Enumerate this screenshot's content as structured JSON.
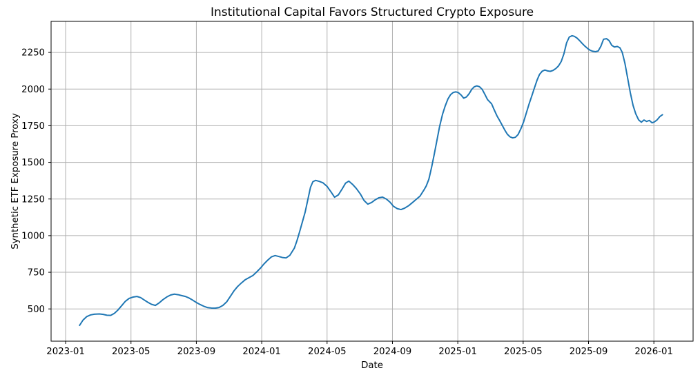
{
  "chart_data": {
    "type": "line",
    "title": "Institutional Capital Favors Structured Crypto Exposure",
    "xlabel": "Date",
    "ylabel": "Synthetic ETF Exposure Proxy",
    "grid": true,
    "grid_color": "#b0b0b0",
    "line_color": "#1f77b4",
    "background_color": "#ffffff",
    "legend": "none",
    "x_axis_origin": "2023-01",
    "x_tick_labels": [
      "2023-01",
      "2023-05",
      "2023-09",
      "2024-01",
      "2024-05",
      "2024-09",
      "2025-01",
      "2025-05",
      "2025-09",
      "2026-01"
    ],
    "y_tick_labels": [
      500,
      750,
      1000,
      1250,
      1500,
      1750,
      2000,
      2250
    ],
    "xlim_month_index": [
      -0.89,
      38.4
    ],
    "ylim": [
      280,
      2462
    ],
    "series": [
      {
        "name": "Synthetic ETF Exposure Proxy",
        "points": [
          [
            "2023-01-27",
            388
          ],
          [
            "2023-02-03",
            424
          ],
          [
            "2023-02-10",
            448
          ],
          [
            "2023-02-17",
            459
          ],
          [
            "2023-02-24",
            464
          ],
          [
            "2023-03-03",
            466
          ],
          [
            "2023-03-10",
            463
          ],
          [
            "2023-03-17",
            457
          ],
          [
            "2023-03-24",
            456
          ],
          [
            "2023-03-31",
            470
          ],
          [
            "2023-04-07",
            492
          ],
          [
            "2023-04-14",
            522
          ],
          [
            "2023-04-21",
            552
          ],
          [
            "2023-04-28",
            572
          ],
          [
            "2023-05-05",
            581
          ],
          [
            "2023-05-12",
            585
          ],
          [
            "2023-05-19",
            577
          ],
          [
            "2023-05-26",
            560
          ],
          [
            "2023-06-02",
            545
          ],
          [
            "2023-06-09",
            531
          ],
          [
            "2023-06-16",
            524
          ],
          [
            "2023-06-23",
            541
          ],
          [
            "2023-06-30",
            563
          ],
          [
            "2023-07-07",
            582
          ],
          [
            "2023-07-14",
            595
          ],
          [
            "2023-07-21",
            601
          ],
          [
            "2023-07-28",
            597
          ],
          [
            "2023-08-04",
            591
          ],
          [
            "2023-08-11",
            585
          ],
          [
            "2023-08-18",
            574
          ],
          [
            "2023-08-25",
            559
          ],
          [
            "2023-09-01",
            544
          ],
          [
            "2023-09-08",
            530
          ],
          [
            "2023-09-15",
            518
          ],
          [
            "2023-09-22",
            509
          ],
          [
            "2023-09-29",
            506
          ],
          [
            "2023-10-06",
            505
          ],
          [
            "2023-10-13",
            510
          ],
          [
            "2023-10-20",
            524
          ],
          [
            "2023-10-27",
            548
          ],
          [
            "2023-11-03",
            583
          ],
          [
            "2023-11-10",
            622
          ],
          [
            "2023-11-17",
            653
          ],
          [
            "2023-11-24",
            677
          ],
          [
            "2023-12-01",
            700
          ],
          [
            "2023-12-08",
            714
          ],
          [
            "2023-12-15",
            728
          ],
          [
            "2023-12-22",
            752
          ],
          [
            "2023-12-29",
            778
          ],
          [
            "2024-01-05",
            806
          ],
          [
            "2024-01-12",
            832
          ],
          [
            "2024-01-19",
            855
          ],
          [
            "2024-01-26",
            864
          ],
          [
            "2024-02-02",
            858
          ],
          [
            "2024-02-09",
            851
          ],
          [
            "2024-02-16",
            848
          ],
          [
            "2024-02-23",
            866
          ],
          [
            "2024-03-01",
            915
          ],
          [
            "2024-03-06",
            968
          ],
          [
            "2024-03-11",
            1030
          ],
          [
            "2024-03-16",
            1095
          ],
          [
            "2024-03-21",
            1160
          ],
          [
            "2024-03-26",
            1245
          ],
          [
            "2024-03-31",
            1330
          ],
          [
            "2024-04-05",
            1368
          ],
          [
            "2024-04-10",
            1377
          ],
          [
            "2024-04-17",
            1370
          ],
          [
            "2024-04-24",
            1360
          ],
          [
            "2024-05-01",
            1336
          ],
          [
            "2024-05-08",
            1300
          ],
          [
            "2024-05-15",
            1262
          ],
          [
            "2024-05-22",
            1278
          ],
          [
            "2024-05-29",
            1318
          ],
          [
            "2024-06-05",
            1358
          ],
          [
            "2024-06-11",
            1372
          ],
          [
            "2024-06-18",
            1350
          ],
          [
            "2024-06-25",
            1322
          ],
          [
            "2024-07-02",
            1285
          ],
          [
            "2024-07-09",
            1240
          ],
          [
            "2024-07-16",
            1215
          ],
          [
            "2024-07-23",
            1226
          ],
          [
            "2024-07-30",
            1245
          ],
          [
            "2024-08-06",
            1258
          ],
          [
            "2024-08-13",
            1263
          ],
          [
            "2024-08-20",
            1250
          ],
          [
            "2024-08-27",
            1228
          ],
          [
            "2024-09-03",
            1200
          ],
          [
            "2024-09-10",
            1184
          ],
          [
            "2024-09-17",
            1178
          ],
          [
            "2024-09-24",
            1188
          ],
          [
            "2024-10-01",
            1205
          ],
          [
            "2024-10-08",
            1226
          ],
          [
            "2024-10-15",
            1248
          ],
          [
            "2024-10-22",
            1270
          ],
          [
            "2024-10-29",
            1310
          ],
          [
            "2024-11-03",
            1338
          ],
          [
            "2024-11-08",
            1385
          ],
          [
            "2024-11-13",
            1465
          ],
          [
            "2024-11-18",
            1555
          ],
          [
            "2024-11-23",
            1650
          ],
          [
            "2024-11-28",
            1745
          ],
          [
            "2024-12-03",
            1828
          ],
          [
            "2024-12-08",
            1885
          ],
          [
            "2024-12-13",
            1932
          ],
          [
            "2024-12-18",
            1962
          ],
          [
            "2024-12-23",
            1977
          ],
          [
            "2024-12-28",
            1981
          ],
          [
            "2025-01-02",
            1976
          ],
          [
            "2025-01-07",
            1960
          ],
          [
            "2025-01-12",
            1938
          ],
          [
            "2025-01-17",
            1946
          ],
          [
            "2025-01-22",
            1968
          ],
          [
            "2025-01-27",
            1998
          ],
          [
            "2025-02-01",
            2015
          ],
          [
            "2025-02-06",
            2022
          ],
          [
            "2025-02-11",
            2016
          ],
          [
            "2025-02-16",
            1998
          ],
          [
            "2025-02-21",
            1964
          ],
          [
            "2025-02-26",
            1928
          ],
          [
            "2025-03-03",
            1900
          ],
          [
            "2025-03-08",
            1858
          ],
          [
            "2025-03-13",
            1818
          ],
          [
            "2025-03-18",
            1786
          ],
          [
            "2025-03-23",
            1752
          ],
          [
            "2025-03-28",
            1718
          ],
          [
            "2025-04-02",
            1692
          ],
          [
            "2025-04-07",
            1674
          ],
          [
            "2025-04-12",
            1667
          ],
          [
            "2025-04-17",
            1671
          ],
          [
            "2025-04-22",
            1690
          ],
          [
            "2025-04-27",
            1728
          ],
          [
            "2025-05-02",
            1778
          ],
          [
            "2025-05-07",
            1838
          ],
          [
            "2025-05-12",
            1898
          ],
          [
            "2025-05-17",
            1952
          ],
          [
            "2025-05-22",
            2008
          ],
          [
            "2025-05-27",
            2062
          ],
          [
            "2025-06-01",
            2100
          ],
          [
            "2025-06-06",
            2122
          ],
          [
            "2025-06-11",
            2130
          ],
          [
            "2025-06-16",
            2124
          ],
          [
            "2025-06-21",
            2121
          ],
          [
            "2025-06-26",
            2127
          ],
          [
            "2025-07-01",
            2140
          ],
          [
            "2025-07-06",
            2158
          ],
          [
            "2025-07-11",
            2188
          ],
          [
            "2025-07-16",
            2240
          ],
          [
            "2025-07-21",
            2315
          ],
          [
            "2025-07-26",
            2355
          ],
          [
            "2025-07-31",
            2364
          ],
          [
            "2025-08-05",
            2360
          ],
          [
            "2025-08-10",
            2348
          ],
          [
            "2025-08-15",
            2330
          ],
          [
            "2025-08-20",
            2310
          ],
          [
            "2025-08-25",
            2292
          ],
          [
            "2025-08-30",
            2276
          ],
          [
            "2025-09-04",
            2265
          ],
          [
            "2025-09-09",
            2258
          ],
          [
            "2025-09-14",
            2255
          ],
          [
            "2025-09-19",
            2260
          ],
          [
            "2025-09-24",
            2292
          ],
          [
            "2025-09-29",
            2340
          ],
          [
            "2025-10-04",
            2344
          ],
          [
            "2025-10-09",
            2330
          ],
          [
            "2025-10-14",
            2298
          ],
          [
            "2025-10-19",
            2287
          ],
          [
            "2025-10-24",
            2291
          ],
          [
            "2025-10-29",
            2282
          ],
          [
            "2025-11-03",
            2250
          ],
          [
            "2025-11-08",
            2175
          ],
          [
            "2025-11-13",
            2075
          ],
          [
            "2025-11-18",
            1975
          ],
          [
            "2025-11-23",
            1890
          ],
          [
            "2025-11-28",
            1832
          ],
          [
            "2025-12-03",
            1790
          ],
          [
            "2025-12-08",
            1774
          ],
          [
            "2025-12-13",
            1789
          ],
          [
            "2025-12-18",
            1779
          ],
          [
            "2025-12-23",
            1786
          ],
          [
            "2025-12-28",
            1770
          ],
          [
            "2026-01-02",
            1776
          ],
          [
            "2026-01-07",
            1790
          ],
          [
            "2026-01-12",
            1812
          ],
          [
            "2026-01-17",
            1825
          ]
        ]
      }
    ]
  }
}
